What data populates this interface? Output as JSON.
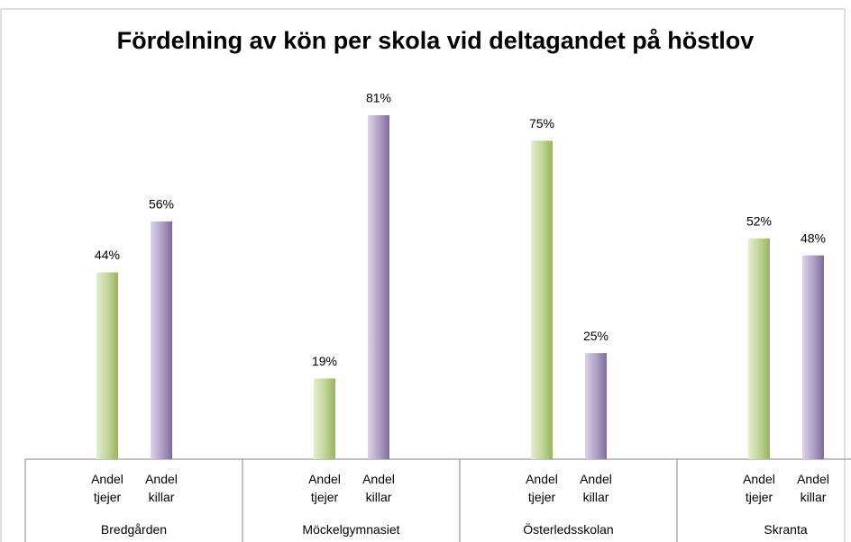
{
  "chart_data": {
    "type": "bar",
    "title": "Fördelning av kön per skola vid deltagandet på höstlov",
    "categories": [
      "Bredgården",
      "Möckelgymnasiet",
      "Österledsskolan",
      "Skranta"
    ],
    "series": [
      {
        "name": "Andel tjejer",
        "color": "#c3d69b",
        "values": [
          44,
          19,
          75,
          52
        ],
        "value_labels": [
          "44%",
          "19%",
          "75%",
          "52%"
        ]
      },
      {
        "name": "Andel killar",
        "color": "#b3a2c7",
        "values": [
          56,
          81,
          25,
          48
        ],
        "value_labels": [
          "56%",
          "81%",
          "25%",
          "48%"
        ]
      }
    ]
  }
}
